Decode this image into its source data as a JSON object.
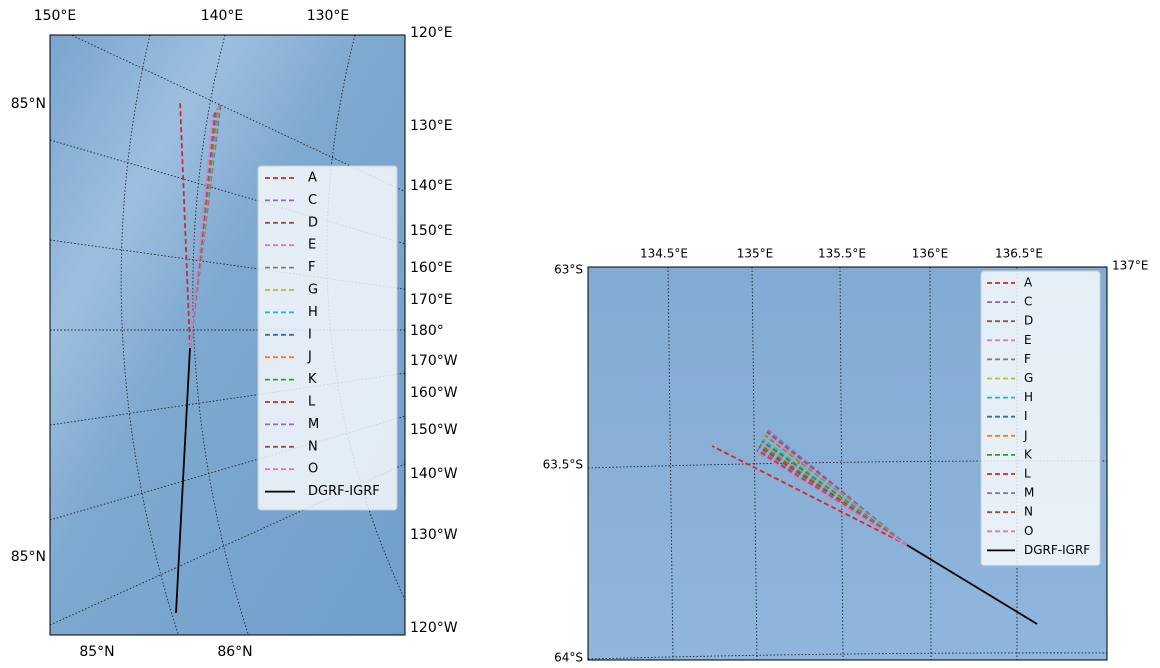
{
  "panels": [
    {
      "top_labels": [
        "150°E",
        "140°E",
        "130°E"
      ],
      "right_labels": [
        "120°E",
        "130°E",
        "140°E",
        "150°E",
        "160°E",
        "170°E",
        "180°",
        "170°W",
        "160°W",
        "150°W",
        "140°W",
        "130°W",
        "120°W"
      ],
      "left_labels": [
        "85°N",
        "85°N"
      ],
      "bottom_labels": [
        "85°N",
        "86°N"
      ]
    },
    {
      "top_labels": [
        "134.5°E",
        "135°E",
        "135.5°E",
        "136°E",
        "136.5°E"
      ],
      "right_labels": [
        "137°E"
      ],
      "left_labels": [
        "63°S",
        "63.5°S",
        "64°S"
      ]
    }
  ],
  "legend": [
    {
      "label": "A",
      "color": "#d62728"
    },
    {
      "label": "C",
      "color": "#9467bd"
    },
    {
      "label": "D",
      "color": "#8c564b"
    },
    {
      "label": "E",
      "color": "#e377c2"
    },
    {
      "label": "F",
      "color": "#7f7f7f"
    },
    {
      "label": "G",
      "color": "#bcbd22"
    },
    {
      "label": "H",
      "color": "#17becf"
    },
    {
      "label": "I",
      "color": "#1f77b4"
    },
    {
      "label": "J",
      "color": "#ff7f0e"
    },
    {
      "label": "K",
      "color": "#2ca02c"
    },
    {
      "label": "L",
      "color": "#d62728"
    },
    {
      "label": "M",
      "color": "#9467bd"
    },
    {
      "label": "N",
      "color": "#8c564b"
    },
    {
      "label": "O",
      "color": "#e377c2"
    },
    {
      "label": "DGRF-IGRF",
      "color": "#000000"
    }
  ]
}
